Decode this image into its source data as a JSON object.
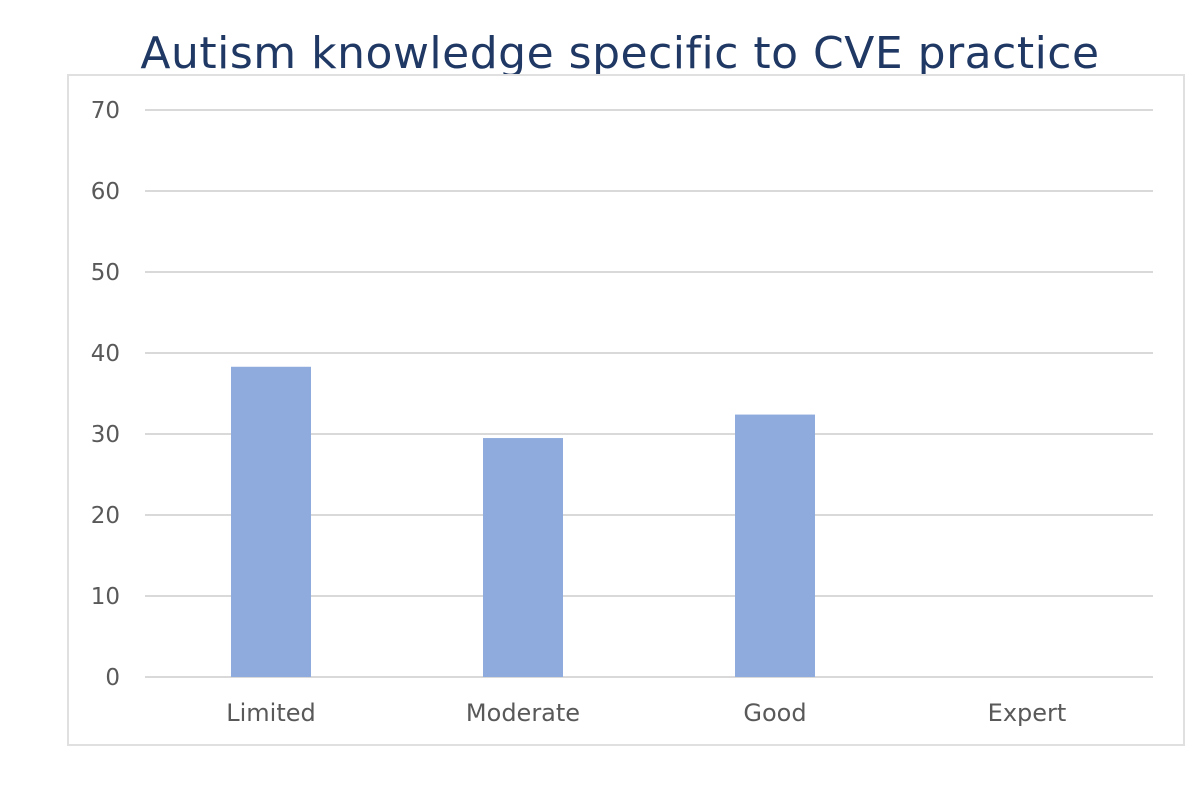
{
  "chart_data": {
    "type": "bar",
    "title": "Autism knowledge specific to CVE practice",
    "categories": [
      "Limited",
      "Moderate",
      "Good",
      "Expert"
    ],
    "values": [
      38.3,
      29.5,
      32.4,
      0
    ],
    "xlabel": "",
    "ylabel": "",
    "ylim": [
      0,
      70
    ],
    "yticks": [
      0,
      10,
      20,
      30,
      40,
      50,
      60,
      70
    ],
    "grid": true,
    "legend": "none",
    "colors": {
      "bar": "#8faadc",
      "grid": "#d9d9d9",
      "title": "#1f3864",
      "labels": "#595959"
    }
  }
}
